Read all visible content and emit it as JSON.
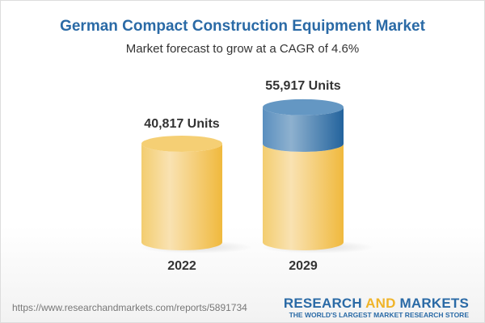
{
  "title": "German Compact Construction Equipment Market",
  "subtitle": "Market forecast to grow at a CAGR of 4.6%",
  "chart_data": {
    "type": "bar",
    "style": "3d-cylinder",
    "categories": [
      "2022",
      "2029"
    ],
    "values": [
      40817,
      55917
    ],
    "data_labels": [
      "40,817 Units",
      "55,917 Units"
    ],
    "colors": {
      "base": "#f3c55a",
      "growth": "#4a83b5"
    }
  },
  "footer": {
    "url": "https://www.researchandmarkets.com/reports/5891734",
    "logo_part1": "RESEARCH ",
    "logo_part2": "AND",
    "logo_part3": " MARKETS",
    "tagline": "THE WORLD'S LARGEST MARKET RESEARCH STORE"
  }
}
